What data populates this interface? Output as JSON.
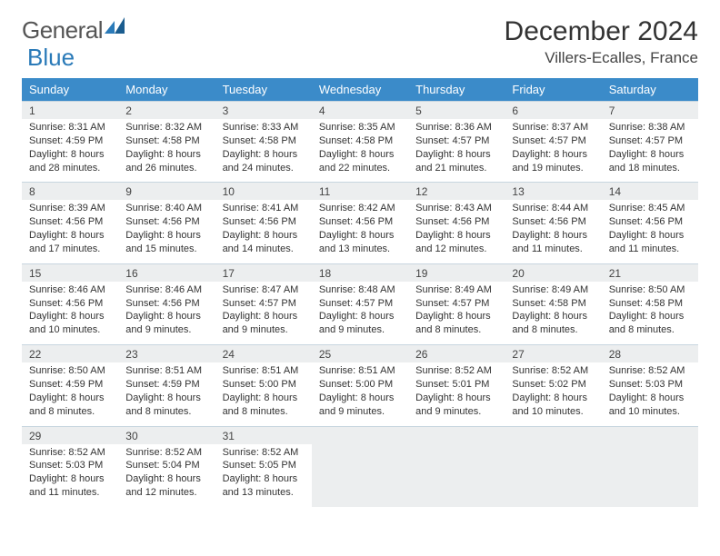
{
  "brand": {
    "part1": "General",
    "part2": "Blue"
  },
  "title": "December 2024",
  "location": "Villers-Ecalles, France",
  "colors": {
    "header_bg": "#3b8bc9",
    "header_text": "#ffffff",
    "daynum_bg": "#eceeef",
    "border": "#c7d5df",
    "text": "#333333"
  },
  "weekdays": [
    "Sunday",
    "Monday",
    "Tuesday",
    "Wednesday",
    "Thursday",
    "Friday",
    "Saturday"
  ],
  "weeks": [
    [
      {
        "n": "1",
        "sr": "Sunrise: 8:31 AM",
        "ss": "Sunset: 4:59 PM",
        "d1": "Daylight: 8 hours",
        "d2": "and 28 minutes."
      },
      {
        "n": "2",
        "sr": "Sunrise: 8:32 AM",
        "ss": "Sunset: 4:58 PM",
        "d1": "Daylight: 8 hours",
        "d2": "and 26 minutes."
      },
      {
        "n": "3",
        "sr": "Sunrise: 8:33 AM",
        "ss": "Sunset: 4:58 PM",
        "d1": "Daylight: 8 hours",
        "d2": "and 24 minutes."
      },
      {
        "n": "4",
        "sr": "Sunrise: 8:35 AM",
        "ss": "Sunset: 4:58 PM",
        "d1": "Daylight: 8 hours",
        "d2": "and 22 minutes."
      },
      {
        "n": "5",
        "sr": "Sunrise: 8:36 AM",
        "ss": "Sunset: 4:57 PM",
        "d1": "Daylight: 8 hours",
        "d2": "and 21 minutes."
      },
      {
        "n": "6",
        "sr": "Sunrise: 8:37 AM",
        "ss": "Sunset: 4:57 PM",
        "d1": "Daylight: 8 hours",
        "d2": "and 19 minutes."
      },
      {
        "n": "7",
        "sr": "Sunrise: 8:38 AM",
        "ss": "Sunset: 4:57 PM",
        "d1": "Daylight: 8 hours",
        "d2": "and 18 minutes."
      }
    ],
    [
      {
        "n": "8",
        "sr": "Sunrise: 8:39 AM",
        "ss": "Sunset: 4:56 PM",
        "d1": "Daylight: 8 hours",
        "d2": "and 17 minutes."
      },
      {
        "n": "9",
        "sr": "Sunrise: 8:40 AM",
        "ss": "Sunset: 4:56 PM",
        "d1": "Daylight: 8 hours",
        "d2": "and 15 minutes."
      },
      {
        "n": "10",
        "sr": "Sunrise: 8:41 AM",
        "ss": "Sunset: 4:56 PM",
        "d1": "Daylight: 8 hours",
        "d2": "and 14 minutes."
      },
      {
        "n": "11",
        "sr": "Sunrise: 8:42 AM",
        "ss": "Sunset: 4:56 PM",
        "d1": "Daylight: 8 hours",
        "d2": "and 13 minutes."
      },
      {
        "n": "12",
        "sr": "Sunrise: 8:43 AM",
        "ss": "Sunset: 4:56 PM",
        "d1": "Daylight: 8 hours",
        "d2": "and 12 minutes."
      },
      {
        "n": "13",
        "sr": "Sunrise: 8:44 AM",
        "ss": "Sunset: 4:56 PM",
        "d1": "Daylight: 8 hours",
        "d2": "and 11 minutes."
      },
      {
        "n": "14",
        "sr": "Sunrise: 8:45 AM",
        "ss": "Sunset: 4:56 PM",
        "d1": "Daylight: 8 hours",
        "d2": "and 11 minutes."
      }
    ],
    [
      {
        "n": "15",
        "sr": "Sunrise: 8:46 AM",
        "ss": "Sunset: 4:56 PM",
        "d1": "Daylight: 8 hours",
        "d2": "and 10 minutes."
      },
      {
        "n": "16",
        "sr": "Sunrise: 8:46 AM",
        "ss": "Sunset: 4:56 PM",
        "d1": "Daylight: 8 hours",
        "d2": "and 9 minutes."
      },
      {
        "n": "17",
        "sr": "Sunrise: 8:47 AM",
        "ss": "Sunset: 4:57 PM",
        "d1": "Daylight: 8 hours",
        "d2": "and 9 minutes."
      },
      {
        "n": "18",
        "sr": "Sunrise: 8:48 AM",
        "ss": "Sunset: 4:57 PM",
        "d1": "Daylight: 8 hours",
        "d2": "and 9 minutes."
      },
      {
        "n": "19",
        "sr": "Sunrise: 8:49 AM",
        "ss": "Sunset: 4:57 PM",
        "d1": "Daylight: 8 hours",
        "d2": "and 8 minutes."
      },
      {
        "n": "20",
        "sr": "Sunrise: 8:49 AM",
        "ss": "Sunset: 4:58 PM",
        "d1": "Daylight: 8 hours",
        "d2": "and 8 minutes."
      },
      {
        "n": "21",
        "sr": "Sunrise: 8:50 AM",
        "ss": "Sunset: 4:58 PM",
        "d1": "Daylight: 8 hours",
        "d2": "and 8 minutes."
      }
    ],
    [
      {
        "n": "22",
        "sr": "Sunrise: 8:50 AM",
        "ss": "Sunset: 4:59 PM",
        "d1": "Daylight: 8 hours",
        "d2": "and 8 minutes."
      },
      {
        "n": "23",
        "sr": "Sunrise: 8:51 AM",
        "ss": "Sunset: 4:59 PM",
        "d1": "Daylight: 8 hours",
        "d2": "and 8 minutes."
      },
      {
        "n": "24",
        "sr": "Sunrise: 8:51 AM",
        "ss": "Sunset: 5:00 PM",
        "d1": "Daylight: 8 hours",
        "d2": "and 8 minutes."
      },
      {
        "n": "25",
        "sr": "Sunrise: 8:51 AM",
        "ss": "Sunset: 5:00 PM",
        "d1": "Daylight: 8 hours",
        "d2": "and 9 minutes."
      },
      {
        "n": "26",
        "sr": "Sunrise: 8:52 AM",
        "ss": "Sunset: 5:01 PM",
        "d1": "Daylight: 8 hours",
        "d2": "and 9 minutes."
      },
      {
        "n": "27",
        "sr": "Sunrise: 8:52 AM",
        "ss": "Sunset: 5:02 PM",
        "d1": "Daylight: 8 hours",
        "d2": "and 10 minutes."
      },
      {
        "n": "28",
        "sr": "Sunrise: 8:52 AM",
        "ss": "Sunset: 5:03 PM",
        "d1": "Daylight: 8 hours",
        "d2": "and 10 minutes."
      }
    ],
    [
      {
        "n": "29",
        "sr": "Sunrise: 8:52 AM",
        "ss": "Sunset: 5:03 PM",
        "d1": "Daylight: 8 hours",
        "d2": "and 11 minutes."
      },
      {
        "n": "30",
        "sr": "Sunrise: 8:52 AM",
        "ss": "Sunset: 5:04 PM",
        "d1": "Daylight: 8 hours",
        "d2": "and 12 minutes."
      },
      {
        "n": "31",
        "sr": "Sunrise: 8:52 AM",
        "ss": "Sunset: 5:05 PM",
        "d1": "Daylight: 8 hours",
        "d2": "and 13 minutes."
      },
      null,
      null,
      null,
      null
    ]
  ]
}
